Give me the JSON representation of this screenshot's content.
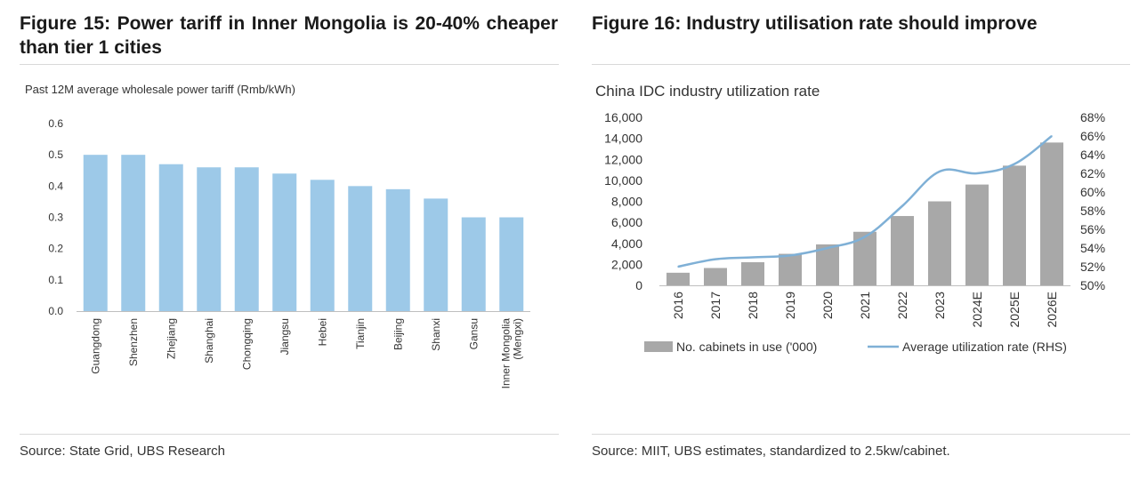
{
  "left_figure": {
    "title": "Figure 15: Power tariff in Inner Mongolia is 20-40% cheaper than tier 1 cities",
    "source": "Source: State Grid, UBS Research"
  },
  "right_figure": {
    "title": "Figure 16: Industry utilisation rate should improve",
    "source": "Source: MIIT, UBS estimates, standardized to 2.5kw/cabinet."
  },
  "colors": {
    "bar_blue": "#9dc9e8",
    "bar_grey": "#a8a8a8",
    "line_blue": "#7fb0d6"
  },
  "chart_data": [
    {
      "type": "bar",
      "title": "Past 12M average wholesale power tariff (Rmb/kWh)",
      "categories": [
        "Guangdong",
        "Shenzhen",
        "Zhejiang",
        "Shanghai",
        "Chongqing",
        "Jiangsu",
        "Hebei",
        "Tianjin",
        "Beijing",
        "Shanxi",
        "Gansu",
        "Inner Mongolia (Mengxi)"
      ],
      "category_lines": [
        [
          "Guangdong"
        ],
        [
          "Shenzhen"
        ],
        [
          "Zhejiang"
        ],
        [
          "Shanghai"
        ],
        [
          "Chongqing"
        ],
        [
          "Jiangsu"
        ],
        [
          "Hebei"
        ],
        [
          "Tianjin"
        ],
        [
          "Beijing"
        ],
        [
          "Shanxi"
        ],
        [
          "Gansu"
        ],
        [
          "Inner Mongolia",
          "(Mengxi)"
        ]
      ],
      "values": [
        0.5,
        0.5,
        0.47,
        0.46,
        0.46,
        0.44,
        0.42,
        0.4,
        0.39,
        0.36,
        0.3,
        0.3
      ],
      "ylim": [
        0,
        0.6
      ],
      "yticks": [
        0.0,
        0.1,
        0.2,
        0.3,
        0.4,
        0.5,
        0.6
      ],
      "ytick_labels": [
        "0.0",
        "0.1",
        "0.2",
        "0.3",
        "0.4",
        "0.5",
        "0.6"
      ],
      "grid": false
    },
    {
      "type": "bar+line",
      "title": "China IDC industry utilization rate",
      "categories": [
        "2016",
        "2017",
        "2018",
        "2019",
        "2020",
        "2021",
        "2022",
        "2023",
        "2024E",
        "2025E",
        "2026E"
      ],
      "series": [
        {
          "name": "No. cabinets in use ('000)",
          "type": "bar",
          "axis": "left",
          "values": [
            1200,
            1650,
            2200,
            3000,
            3900,
            5100,
            6600,
            8000,
            9600,
            11400,
            13600
          ]
        },
        {
          "name": "Average utilization rate (RHS)",
          "type": "line",
          "axis": "right",
          "values": [
            52.0,
            52.8,
            53.0,
            53.2,
            54.0,
            55.2,
            58.5,
            62.2,
            62.0,
            63.0,
            66.0
          ]
        }
      ],
      "y_left": {
        "lim": [
          0,
          16000
        ],
        "ticks": [
          0,
          2000,
          4000,
          6000,
          8000,
          10000,
          12000,
          14000,
          16000
        ],
        "tick_labels": [
          "0",
          "2,000",
          "4,000",
          "6,000",
          "8,000",
          "10,000",
          "12,000",
          "14,000",
          "16,000"
        ]
      },
      "y_right": {
        "lim": [
          50,
          68
        ],
        "ticks": [
          50,
          52,
          54,
          56,
          58,
          60,
          62,
          64,
          66,
          68
        ],
        "tick_labels": [
          "50%",
          "52%",
          "54%",
          "56%",
          "58%",
          "60%",
          "62%",
          "64%",
          "66%",
          "68%"
        ]
      },
      "legend": [
        "No. cabinets in use ('000)",
        "Average utilization rate (RHS)"
      ],
      "legend_position": "bottom",
      "grid": false
    }
  ]
}
